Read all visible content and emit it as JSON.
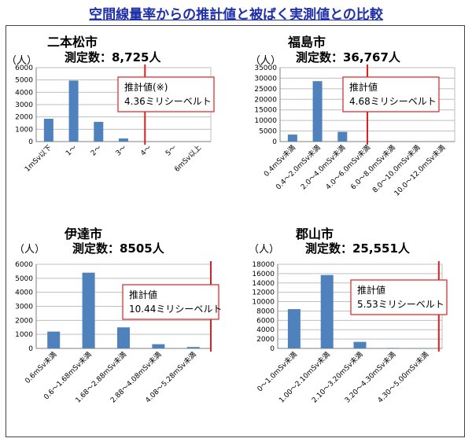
{
  "page": {
    "title": "空間線量率からの推計値と被ばく実測値との比較"
  },
  "chart_data": [
    {
      "type": "bar",
      "city": "二本松市",
      "count_label": "測定数：8,725人",
      "ylabel": "（人）",
      "categories": [
        "1mSv以下",
        "1〜",
        "2〜",
        "3〜",
        "4〜",
        "5〜",
        "6mSv以上"
      ],
      "values": [
        1850,
        4950,
        1600,
        250,
        20,
        5,
        3
      ],
      "ylim": [
        0,
        6000
      ],
      "yticks": [
        0,
        1000,
        2000,
        3000,
        4000,
        5000,
        6000
      ],
      "estimate": {
        "label": "推計値(※)",
        "value_text": "4.36ミリシーベルト",
        "x_category_position": 4.36
      },
      "color": "#4f81bd",
      "estimate_color": "#e02020",
      "grid": true
    },
    {
      "type": "bar",
      "city": "福島市",
      "count_label": "測定数：36,767人",
      "ylabel": "（人）",
      "categories": [
        "0.4mSv未満",
        "0.4〜2.0mSv未満",
        "2.0〜4.0mSv未満",
        "4.0〜6.0mSv未満",
        "6.0〜8.0mSv未満",
        "8.0〜10.0mSv未満",
        "10.0〜12.0mSv未満"
      ],
      "values": [
        3300,
        28600,
        4600,
        200,
        30,
        10,
        5
      ],
      "ylim": [
        0,
        35000
      ],
      "yticks": [
        0,
        5000,
        10000,
        15000,
        20000,
        25000,
        30000,
        35000
      ],
      "estimate": {
        "label": "推計値",
        "value_text": "4.68ミリシーベルト",
        "x_category_position": 3.5
      },
      "color": "#4f81bd",
      "estimate_color": "#e02020",
      "grid": true
    },
    {
      "type": "bar",
      "city": "伊達市",
      "count_label": "測定数：8505人",
      "ylabel": "（人）",
      "categories": [
        "0.6mSv未満",
        "0.6〜1.68mSv未満",
        "1.68〜2.88mSv未満",
        "2.88〜4.08mSv未満",
        "4.08〜5.28mSv未満"
      ],
      "values": [
        1200,
        5400,
        1500,
        300,
        100
      ],
      "ylim": [
        0,
        6000
      ],
      "yticks": [
        0,
        1000,
        2000,
        3000,
        4000,
        5000,
        6000
      ],
      "estimate": {
        "label": "推計値",
        "value_text": "10.44ミリシーベルト",
        "x_category_position": 5.0
      },
      "color": "#4f81bd",
      "estimate_color": "#e02020",
      "grid": true
    },
    {
      "type": "bar",
      "city": "郡山市",
      "count_label": "測定数：25,551人",
      "ylabel": "（人）",
      "categories": [
        "0〜1.0mSv未満",
        "1.00〜2.10mSv未満",
        "2.10〜3.20mSv未満",
        "3.20〜4.30mSv未満",
        "4.30〜5.00mSv未満"
      ],
      "values": [
        8400,
        15700,
        1400,
        100,
        20
      ],
      "ylim": [
        0,
        18000
      ],
      "yticks": [
        0,
        2000,
        4000,
        6000,
        8000,
        10000,
        12000,
        14000,
        16000,
        18000
      ],
      "estimate": {
        "label": "推計値",
        "value_text": "5.53ミリシーベルト",
        "x_category_position": 4.9
      },
      "color": "#4f81bd",
      "estimate_color": "#e02020",
      "grid": true
    }
  ]
}
